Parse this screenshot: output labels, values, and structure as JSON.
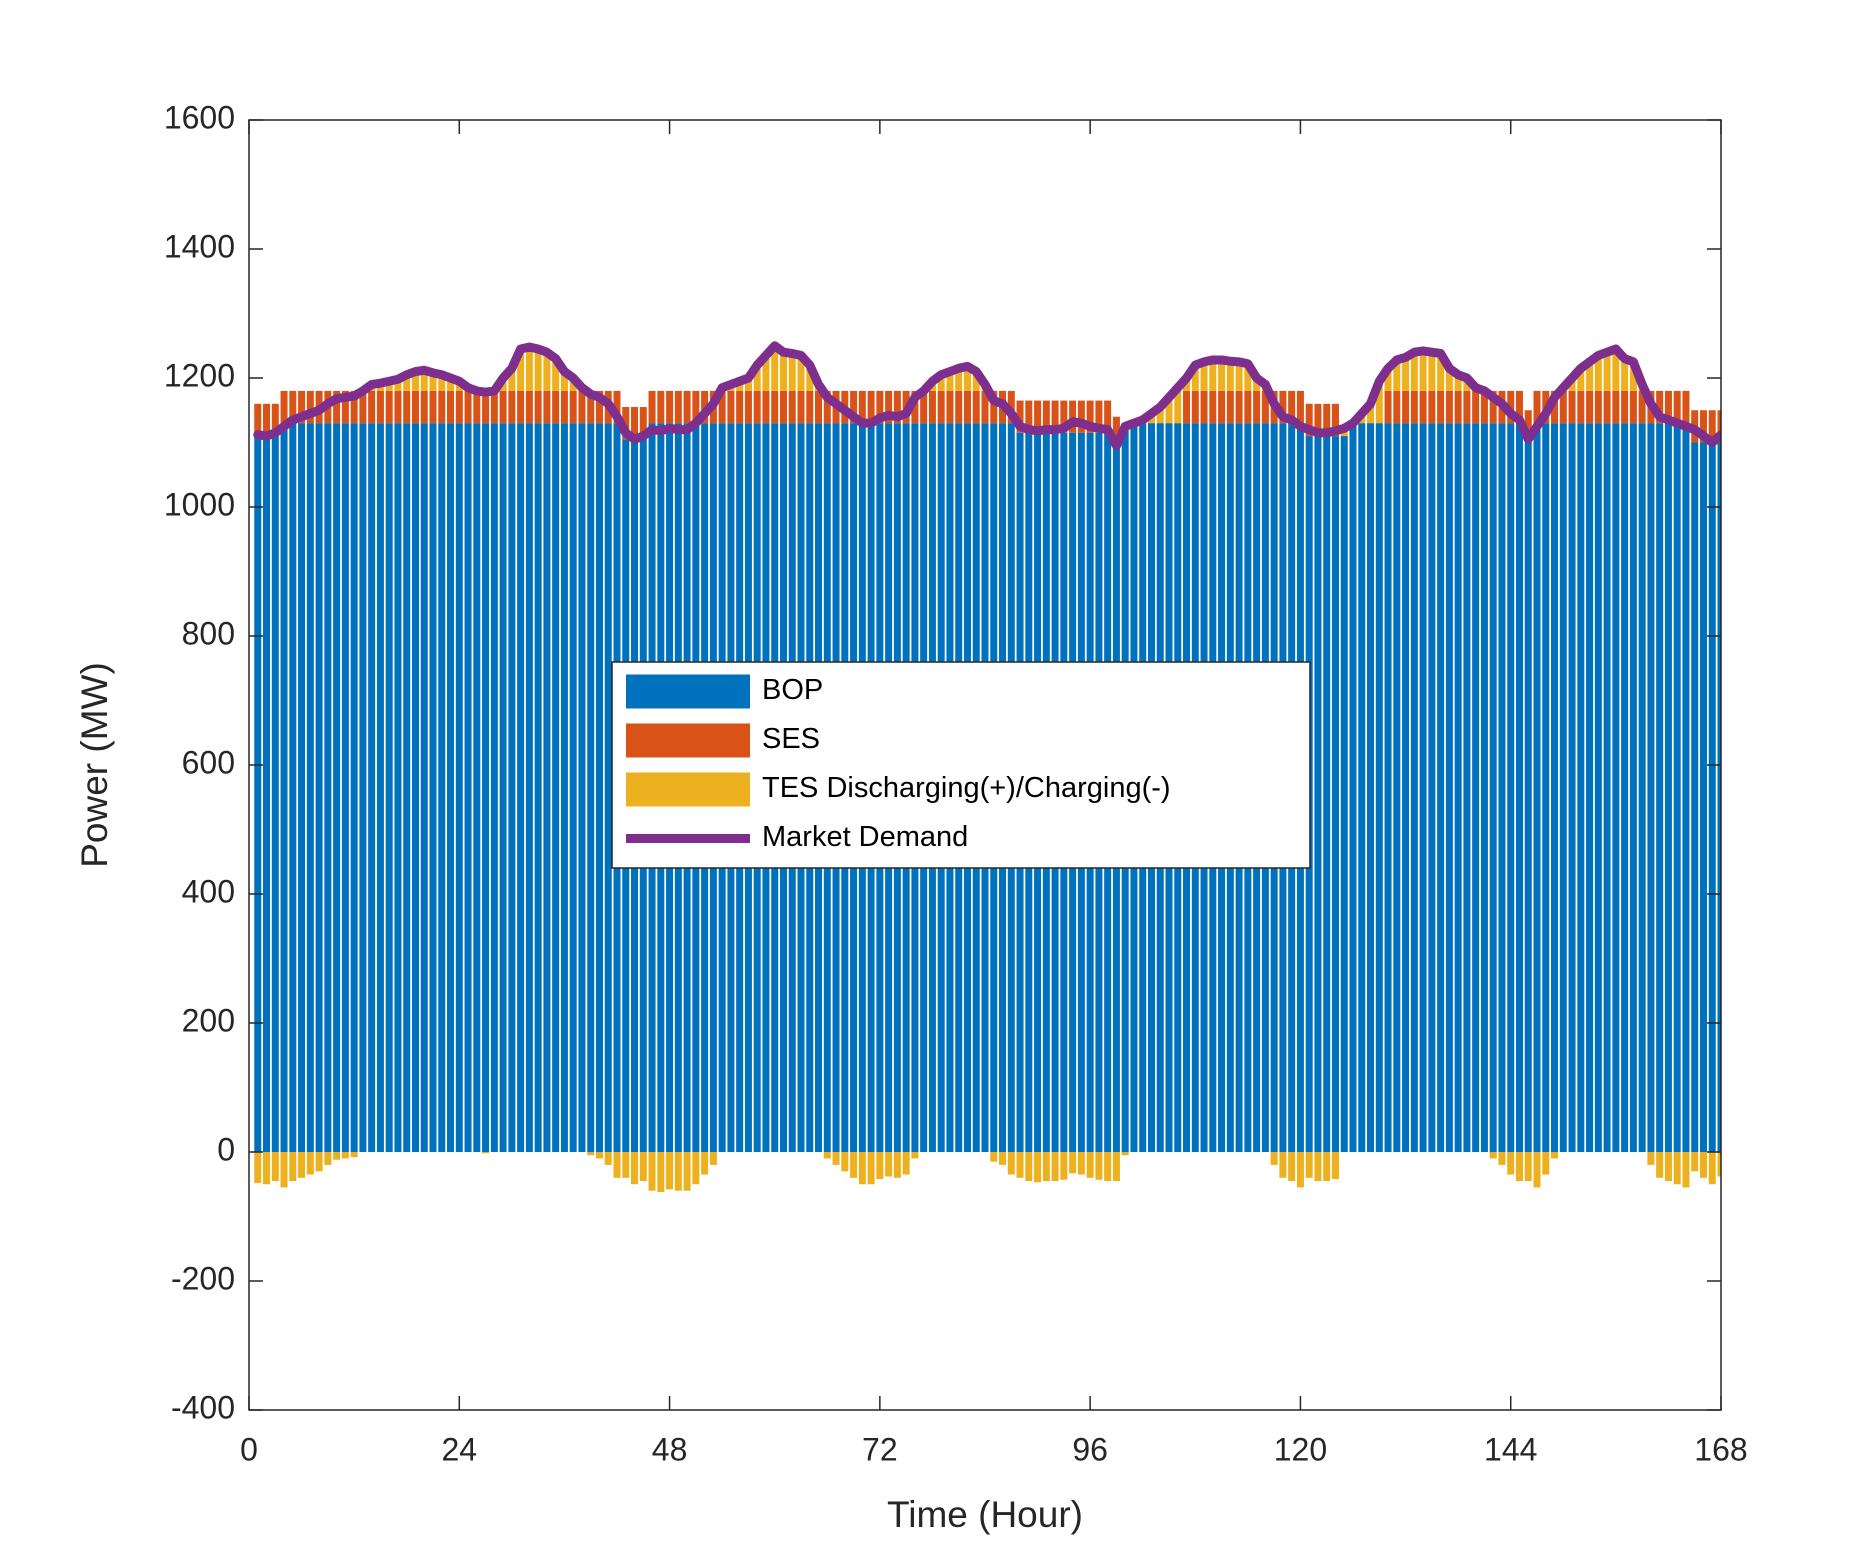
{
  "chart_data": {
    "type": "bar",
    "stacked": true,
    "legend": "center",
    "box": true,
    "xlabel": "Time (Hour)",
    "ylabel": "Power (MW)",
    "xlim": [
      0,
      168
    ],
    "xticks": [
      0,
      24,
      48,
      72,
      96,
      120,
      144,
      168
    ],
    "ylim": [
      -400,
      1600
    ],
    "yticks": [
      -400,
      -200,
      0,
      200,
      400,
      600,
      800,
      1000,
      1200,
      1400,
      1600
    ],
    "x": [
      1,
      2,
      3,
      4,
      5,
      6,
      7,
      8,
      9,
      10,
      11,
      12,
      13,
      14,
      15,
      16,
      17,
      18,
      19,
      20,
      21,
      22,
      23,
      24,
      25,
      26,
      27,
      28,
      29,
      30,
      31,
      32,
      33,
      34,
      35,
      36,
      37,
      38,
      39,
      40,
      41,
      42,
      43,
      44,
      45,
      46,
      47,
      48,
      49,
      50,
      51,
      52,
      53,
      54,
      55,
      56,
      57,
      58,
      59,
      60,
      61,
      62,
      63,
      64,
      65,
      66,
      67,
      68,
      69,
      70,
      71,
      72,
      73,
      74,
      75,
      76,
      77,
      78,
      79,
      80,
      81,
      82,
      83,
      84,
      85,
      86,
      87,
      88,
      89,
      90,
      91,
      92,
      93,
      94,
      95,
      96,
      97,
      98,
      99,
      100,
      101,
      102,
      103,
      104,
      105,
      106,
      107,
      108,
      109,
      110,
      111,
      112,
      113,
      114,
      115,
      116,
      117,
      118,
      119,
      120,
      121,
      122,
      123,
      124,
      125,
      126,
      127,
      128,
      129,
      130,
      131,
      132,
      133,
      134,
      135,
      136,
      137,
      138,
      139,
      140,
      141,
      142,
      143,
      144,
      145,
      146,
      147,
      148,
      149,
      150,
      151,
      152,
      153,
      154,
      155,
      156,
      157,
      158,
      159,
      160,
      161,
      162,
      163,
      164,
      165,
      166,
      167,
      168
    ],
    "series": [
      {
        "name": "BOP",
        "color": "#0072BD",
        "values": [
          1110,
          1110,
          1110,
          1130,
          1130,
          1130,
          1130,
          1130,
          1130,
          1130,
          1130,
          1130,
          1130,
          1130,
          1130,
          1130,
          1130,
          1130,
          1130,
          1130,
          1130,
          1130,
          1130,
          1130,
          1130,
          1130,
          1130,
          1130,
          1130,
          1130,
          1130,
          1130,
          1130,
          1130,
          1130,
          1130,
          1130,
          1130,
          1130,
          1130,
          1130,
          1130,
          1105,
          1105,
          1105,
          1130,
          1130,
          1130,
          1130,
          1130,
          1130,
          1130,
          1130,
          1130,
          1130,
          1130,
          1130,
          1130,
          1130,
          1130,
          1130,
          1130,
          1130,
          1130,
          1130,
          1130,
          1130,
          1130,
          1130,
          1130,
          1130,
          1130,
          1130,
          1130,
          1130,
          1130,
          1130,
          1130,
          1130,
          1130,
          1130,
          1130,
          1130,
          1130,
          1130,
          1130,
          1130,
          1115,
          1115,
          1115,
          1115,
          1115,
          1115,
          1115,
          1115,
          1115,
          1115,
          1115,
          1090,
          1130,
          1130,
          1130,
          1130,
          1130,
          1130,
          1130,
          1130,
          1130,
          1130,
          1130,
          1130,
          1130,
          1130,
          1130,
          1130,
          1130,
          1130,
          1130,
          1130,
          1130,
          1110,
          1110,
          1110,
          1110,
          1110,
          1130,
          1130,
          1130,
          1130,
          1130,
          1130,
          1130,
          1130,
          1130,
          1130,
          1130,
          1130,
          1130,
          1130,
          1130,
          1130,
          1130,
          1130,
          1130,
          1130,
          1100,
          1130,
          1130,
          1130,
          1130,
          1130,
          1130,
          1130,
          1130,
          1130,
          1130,
          1130,
          1130,
          1130,
          1130,
          1130,
          1130,
          1130,
          1130,
          1100,
          1100,
          1100,
          1100
        ]
      },
      {
        "name": "SES",
        "color": "#D95319",
        "values": [
          50,
          50,
          50,
          50,
          50,
          50,
          50,
          50,
          50,
          50,
          50,
          50,
          50,
          50,
          50,
          50,
          50,
          50,
          50,
          50,
          50,
          50,
          50,
          50,
          50,
          50,
          50,
          50,
          50,
          50,
          50,
          50,
          50,
          50,
          50,
          50,
          50,
          50,
          50,
          50,
          50,
          50,
          50,
          50,
          50,
          50,
          50,
          50,
          50,
          50,
          50,
          50,
          50,
          50,
          50,
          50,
          50,
          50,
          50,
          50,
          50,
          50,
          50,
          50,
          50,
          50,
          50,
          50,
          50,
          50,
          50,
          50,
          50,
          50,
          50,
          50,
          50,
          50,
          50,
          50,
          50,
          50,
          50,
          50,
          50,
          50,
          50,
          50,
          50,
          50,
          50,
          50,
          50,
          50,
          50,
          50,
          50,
          50,
          50,
          0,
          0,
          0,
          0,
          0,
          0,
          0,
          50,
          50,
          50,
          50,
          50,
          50,
          50,
          50,
          50,
          50,
          50,
          50,
          50,
          50,
          50,
          50,
          50,
          50,
          0,
          0,
          0,
          0,
          0,
          50,
          50,
          50,
          50,
          50,
          50,
          50,
          50,
          50,
          50,
          50,
          50,
          50,
          50,
          50,
          50,
          50,
          50,
          50,
          50,
          50,
          50,
          50,
          50,
          50,
          50,
          50,
          50,
          50,
          50,
          50,
          50,
          50,
          50,
          50,
          50,
          50,
          50,
          50
        ]
      },
      {
        "name": "TES Discharging(+)/Charging(-)",
        "color": "#EDB120",
        "values": [
          -48,
          -50,
          -45,
          -55,
          -45,
          -40,
          -35,
          -30,
          -20,
          -12,
          -10,
          -8,
          0,
          10,
          12,
          15,
          18,
          25,
          30,
          32,
          28,
          25,
          20,
          15,
          5,
          0,
          -2,
          0,
          20,
          35,
          65,
          68,
          65,
          60,
          50,
          30,
          20,
          5,
          -5,
          -10,
          -20,
          -40,
          -40,
          -50,
          -45,
          -60,
          -62,
          -58,
          -60,
          -60,
          -50,
          -35,
          -20,
          5,
          10,
          15,
          20,
          40,
          55,
          70,
          60,
          58,
          55,
          40,
          10,
          -10,
          -20,
          -30,
          -40,
          -50,
          -50,
          -42,
          -38,
          -40,
          -35,
          -10,
          0,
          15,
          25,
          30,
          35,
          38,
          30,
          10,
          -15,
          -20,
          -35,
          -40,
          -45,
          -47,
          -45,
          -45,
          -43,
          -33,
          -35,
          -40,
          -43,
          -45,
          -45,
          -5,
          0,
          5,
          15,
          25,
          40,
          55,
          20,
          40,
          45,
          48,
          48,
          46,
          45,
          42,
          20,
          10,
          -20,
          -40,
          -45,
          -55,
          -40,
          -45,
          -45,
          -42,
          12,
          0,
          15,
          30,
          65,
          35,
          48,
          52,
          60,
          62,
          60,
          58,
          35,
          25,
          20,
          5,
          0,
          -10,
          -20,
          -35,
          -45,
          -45,
          -55,
          -35,
          -10,
          5,
          20,
          35,
          45,
          55,
          60,
          65,
          50,
          45,
          10,
          -20,
          -40,
          -45,
          -50,
          -55,
          -30,
          -40,
          -50,
          -38
        ]
      },
      {
        "name": "Market Demand",
        "type": "line",
        "color": "#7E2F8E",
        "values": [
          1112,
          1110,
          1115,
          1125,
          1135,
          1140,
          1145,
          1150,
          1160,
          1168,
          1170,
          1172,
          1180,
          1190,
          1192,
          1195,
          1198,
          1205,
          1210,
          1212,
          1208,
          1205,
          1200,
          1195,
          1185,
          1180,
          1178,
          1180,
          1200,
          1215,
          1245,
          1248,
          1245,
          1240,
          1230,
          1210,
          1200,
          1185,
          1175,
          1170,
          1160,
          1140,
          1115,
          1105,
          1110,
          1120,
          1118,
          1122,
          1120,
          1120,
          1130,
          1145,
          1160,
          1185,
          1190,
          1195,
          1200,
          1220,
          1235,
          1250,
          1240,
          1238,
          1235,
          1220,
          1190,
          1170,
          1160,
          1150,
          1140,
          1130,
          1130,
          1138,
          1142,
          1140,
          1145,
          1170,
          1180,
          1195,
          1205,
          1210,
          1215,
          1218,
          1210,
          1190,
          1165,
          1160,
          1145,
          1125,
          1120,
          1118,
          1120,
          1120,
          1122,
          1132,
          1130,
          1125,
          1122,
          1120,
          1095,
          1125,
          1130,
          1135,
          1145,
          1155,
          1170,
          1185,
          1200,
          1220,
          1225,
          1228,
          1228,
          1226,
          1225,
          1222,
          1200,
          1190,
          1160,
          1140,
          1135,
          1125,
          1120,
          1115,
          1115,
          1118,
          1122,
          1130,
          1145,
          1160,
          1195,
          1215,
          1228,
          1232,
          1240,
          1242,
          1240,
          1238,
          1215,
          1205,
          1200,
          1185,
          1180,
          1170,
          1160,
          1145,
          1135,
          1105,
          1125,
          1145,
          1170,
          1185,
          1200,
          1215,
          1225,
          1235,
          1240,
          1245,
          1230,
          1225,
          1190,
          1160,
          1140,
          1135,
          1130,
          1125,
          1120,
          1110,
          1100,
          1112
        ]
      }
    ]
  }
}
